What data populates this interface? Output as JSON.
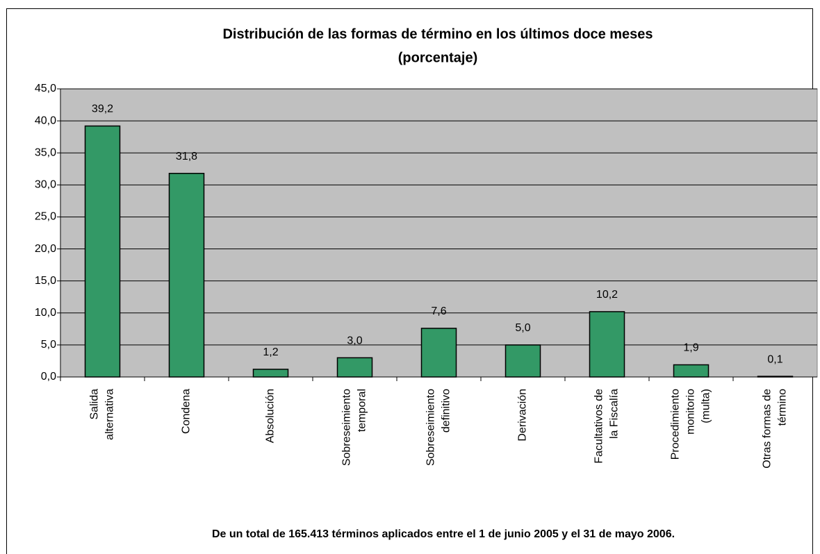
{
  "chart_data": {
    "type": "bar",
    "title": "Distribución de las formas de término en los últimos doce meses",
    "subtitle": "(porcentaje)",
    "footnote": "De un total de 165.413 términos aplicados entre el 1 de junio 2005 y el 31 de mayo 2006.",
    "categories": [
      "Salida\nalternativa",
      "Condena",
      "Absolución",
      "Sobreseimiento\ntemporal",
      "Sobreseimiento\ndefinitivo",
      "Derivación",
      "Facultativos de\nla Fiscalía",
      "Procedimiento\nmonitorio\n(multa)",
      "Otras formas de\ntérmino"
    ],
    "values": [
      39.2,
      31.8,
      1.2,
      3.0,
      7.6,
      5.0,
      10.2,
      1.9,
      0.1
    ],
    "value_labels": [
      "39,2",
      "31,8",
      "1,2",
      "3,0",
      "7,6",
      "5,0",
      "10,2",
      "1,9",
      "0,1"
    ],
    "color": "#339966",
    "plot_background": "#c0c0c0",
    "ylim": [
      0,
      45
    ],
    "yticks": [
      {
        "value": 0,
        "label": "0,0"
      },
      {
        "value": 5,
        "label": "5,0"
      },
      {
        "value": 10,
        "label": "10,0"
      },
      {
        "value": 15,
        "label": "15,0"
      },
      {
        "value": 20,
        "label": "20,0"
      },
      {
        "value": 25,
        "label": "25,0"
      },
      {
        "value": 30,
        "label": "30,0"
      },
      {
        "value": 35,
        "label": "35,0"
      },
      {
        "value": 40,
        "label": "40,0"
      },
      {
        "value": 45,
        "label": "45,0"
      }
    ],
    "grid": true
  }
}
